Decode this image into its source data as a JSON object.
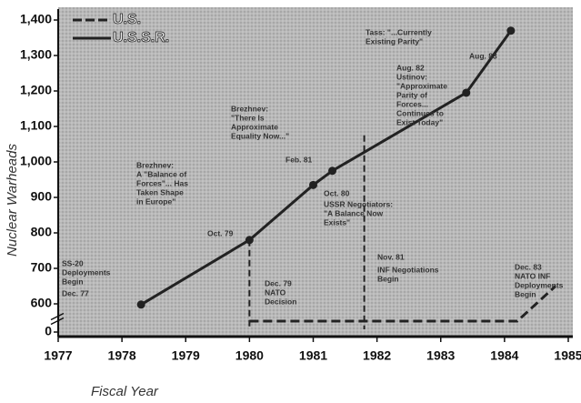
{
  "chart_data": {
    "type": "line",
    "y_label": "Nuclear Warheads",
    "x_label": "Fiscal Year",
    "xlim": [
      1977,
      1985
    ],
    "xticks": [
      1977,
      1978,
      1979,
      1980,
      1981,
      1982,
      1983,
      1984,
      1985
    ],
    "ylim": [
      0,
      1400
    ],
    "yticks": [
      0,
      600,
      700,
      {
        "value": 800,
        "label": "800"
      },
      900,
      {
        "value": 1000,
        "label": "1,000"
      },
      {
        "value": 1100,
        "label": "1,100"
      },
      {
        "value": 1200,
        "label": "1,200"
      },
      {
        "value": 1300,
        "label": "1,300"
      },
      {
        "value": 1400,
        "label": "1,400"
      }
    ],
    "axis_break": true,
    "series": [
      {
        "name": "U.S.",
        "color": "#222222",
        "dashed": true,
        "x": [
          1980,
          1984.2,
          1984.8
        ],
        "values": [
          0,
          0,
          650
        ]
      },
      {
        "name": "U.S.S.R.",
        "color": "#222222",
        "dashed": false,
        "x": [
          1978.3,
          1980.0,
          1981.0,
          1981.3,
          1983.4,
          1984.1
        ],
        "values": [
          585,
          780,
          935,
          975,
          1195,
          1370
        ]
      }
    ],
    "event_lines": [
      {
        "x": 1980,
        "y": 780
      },
      {
        "x": 1981.8,
        "y": 1075
      }
    ],
    "annotations": [
      [
        "SS-20",
        "Deployments",
        "Begin"
      ],
      [
        "Dec. 77"
      ],
      [
        "Brezhnev:",
        "A \"Balance of",
        "Forces\"... Has",
        "Taken Shape",
        "in Europe\""
      ],
      [
        "Oct. 79"
      ],
      [
        "Dec. 79",
        "NATO",
        "Decision"
      ],
      [
        "Brezhnev:",
        "\"There Is",
        "Approximate",
        "Equality Now...\""
      ],
      [
        "Feb. 81"
      ],
      [
        "Oct. 80"
      ],
      [
        "USSR Negotiators:",
        "\"A Balance Now",
        "Exists\""
      ],
      [
        "Nov. 81"
      ],
      [
        "INF Negotiations",
        "Begin"
      ],
      [
        "Aug. 82",
        "Ustinov:",
        "\"Approximate",
        "Parity of",
        "Forces...",
        "Continues to",
        "Exist Today\""
      ],
      [
        "Tass: \"...Currently",
        "Existing Parity\""
      ],
      [
        "Aug. 83"
      ],
      [
        "Dec. 83",
        "NATO INF",
        "Deployments",
        "Begin"
      ]
    ]
  }
}
